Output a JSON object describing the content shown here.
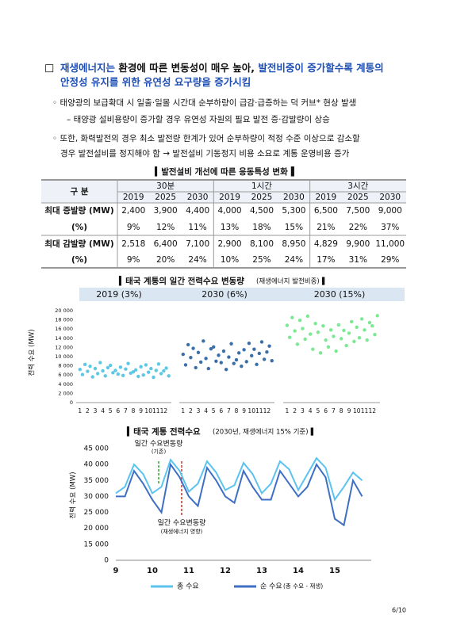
{
  "heading": {
    "line1": [
      {
        "text": "재생에너지는",
        "color": "#1f4fb4"
      },
      {
        "text": " 환경에 따른 변동성이 매우 높아, ",
        "color": "#111111"
      },
      {
        "text": "발전비중이 증가할수록 계통의",
        "color": "#1f4fb4"
      }
    ],
    "line2": [
      {
        "text": "안정성 유지를 위한 유연성 요구량을 증가시킴",
        "color": "#1f4fb4"
      }
    ]
  },
  "bullets": [
    "◦ 태양광의 보급확대 시 일출·일몰 시간대 순부하량이 급감·급증하는 덕 커브* 현상 발생",
    "– 태양광 설비용량이 증가할 경우 유연성 자원의 필요 발전 증·감발량이 상승",
    "◦ 또한, 화력발전의 경우 최소 발전량 한계가 있어 순부하량이 적정 수준 이상으로 감소할",
    "경우 발전설비를 정지해야 함 → 발전설비 기동정지 비용 소요로 계통 운영비용 증가"
  ],
  "table": {
    "title": "▍발전설비 개선에 따른 응동특성 변화▐",
    "corner": "구 분",
    "groups": [
      "30분",
      "1시간",
      "3시간"
    ],
    "years": [
      "2019",
      "2025",
      "2030",
      "2019",
      "2025",
      "2030",
      "2019",
      "2025",
      "2030"
    ],
    "rows": [
      {
        "label": "최대 증발량 (MW)",
        "values": [
          "2,400",
          "3,900",
          "4,400",
          "4,000",
          "4,500",
          "5,300",
          "6,500",
          "7,500",
          "9,000"
        ]
      },
      {
        "label": "(%)",
        "values": [
          "9%",
          "12%",
          "11%",
          "13%",
          "18%",
          "15%",
          "21%",
          "22%",
          "37%"
        ]
      },
      {
        "label": "최대 감발량 (MW)",
        "values": [
          "2,518",
          "6,400",
          "7,100",
          "2,900",
          "8,100",
          "8,950",
          "4,829",
          "9,900",
          "11,000"
        ]
      },
      {
        "label": "(%)",
        "values": [
          "9%",
          "20%",
          "24%",
          "10%",
          "25%",
          "24%",
          "17%",
          "31%",
          "29%"
        ]
      }
    ]
  },
  "charts": [
    {
      "type": "scatter",
      "title": "▍태국 계통의 일간 전력수요 변동량",
      "subtitle": "(재생에너지 발전비중)▐",
      "y_label": "전력 수요 (MW)",
      "ylim": [
        0,
        20000
      ],
      "yticks": [
        0,
        {
          "value": 2000,
          "label": "2 000"
        },
        {
          "value": 4000,
          "label": "4 000"
        },
        {
          "value": 6000,
          "label": "6 000"
        },
        {
          "value": 8000,
          "label": "8 000"
        },
        {
          "value": 10000,
          "label": "10 000"
        },
        {
          "value": 12000,
          "label": "12 000"
        },
        {
          "value": 14000,
          "label": "14 000"
        },
        {
          "value": 16000,
          "label": "16 000"
        },
        {
          "value": 18000,
          "label": "18 000"
        },
        {
          "value": 20000,
          "label": "20 000"
        }
      ],
      "xlim": [
        0.5,
        13
      ],
      "xticks": [
        1,
        2,
        3,
        4,
        5,
        6,
        7,
        8,
        9,
        10,
        11,
        12
      ],
      "x": [
        1,
        1.33,
        1.66,
        2,
        2.33,
        2.66,
        3,
        3.33,
        3.66,
        4,
        4.33,
        4.66,
        5,
        5.33,
        5.66,
        6,
        6.33,
        6.66,
        7,
        7.33,
        7.66,
        8,
        8.33,
        8.66,
        9,
        9.33,
        9.66,
        10,
        10.33,
        10.66,
        11,
        11.33,
        11.66,
        12,
        12.33,
        12.66
      ],
      "panels": [
        {
          "label": "2019 (3%)",
          "color": "#5cc8e3",
          "values": [
            7200,
            6100,
            8300,
            6800,
            7900,
            5600,
            7400,
            6300,
            8700,
            6900,
            5800,
            7600,
            8100,
            6500,
            7000,
            6200,
            7700,
            5900,
            7300,
            8500,
            6400,
            6700,
            7100,
            5700,
            7800,
            6000,
            8200,
            6600,
            7400,
            5500,
            7000,
            8400,
            6300,
            6900,
            7500,
            5800
          ]
        },
        {
          "label": "2030 (6%)",
          "color": "#3b6fa9",
          "values": [
            10500,
            8200,
            12600,
            9800,
            11800,
            7600,
            10900,
            8800,
            13400,
            9600,
            7400,
            11700,
            12100,
            9000,
            10300,
            8700,
            11200,
            7200,
            9900,
            12800,
            8500,
            9300,
            10800,
            7900,
            11500,
            8900,
            12900,
            10200,
            11600,
            8300,
            10700,
            13200,
            9400,
            11000,
            12300,
            9100
          ]
        },
        {
          "label": "2030 (15%)",
          "color": "#7be892",
          "values": [
            16800,
            14200,
            18500,
            15600,
            12700,
            17900,
            16100,
            13800,
            18800,
            14900,
            11600,
            17200,
            15300,
            10800,
            16700,
            13600,
            12100,
            15800,
            14400,
            11200,
            16900,
            13900,
            15700,
            12400,
            15100,
            17600,
            13300,
            16400,
            14100,
            18200,
            15800,
            13600,
            17400,
            16700,
            14800,
            18900
          ]
        }
      ]
    },
    {
      "type": "line",
      "title": "▍태국 계통 전력수요",
      "subtitle": "(2030년, 재생에너지 15% 기준)▐",
      "y_label": "전력 수요 (MW)",
      "yticks": [
        0,
        {
          "value": 15000,
          "label": "15 000"
        },
        {
          "value": 20000,
          "label": "20 000"
        },
        {
          "value": 25000,
          "label": "25 000"
        },
        {
          "value": 30000,
          "label": "30 000"
        },
        {
          "value": 35000,
          "label": "35 000"
        },
        {
          "value": 40000,
          "label": "40 000"
        },
        {
          "value": 45000,
          "label": "45 000"
        }
      ],
      "xlim": [
        9,
        16
      ],
      "xticks": [
        9,
        10,
        11,
        12,
        13,
        14,
        15
      ],
      "x": [
        9,
        9.25,
        9.5,
        9.75,
        10,
        10.25,
        10.5,
        10.75,
        11,
        11.25,
        11.5,
        11.75,
        12,
        12.25,
        12.5,
        12.75,
        13,
        13.25,
        13.5,
        13.75,
        14,
        14.25,
        14.5,
        14.75,
        15,
        15.25,
        15.5,
        15.75
      ],
      "series": [
        {
          "name": "총 수요",
          "color": "#5bc3ee",
          "values": [
            31000,
            33000,
            40000,
            37000,
            31000,
            33000,
            41500,
            38000,
            31500,
            34000,
            41000,
            37500,
            32000,
            33500,
            40500,
            37000,
            31000,
            34000,
            41000,
            38500,
            32000,
            37000,
            42000,
            39000,
            29000,
            33000,
            37500,
            35000
          ]
        },
        {
          "name": "순 수요",
          "note": "(총 수요 - 재생)",
          "color": "#3f6fc4",
          "values": [
            30000,
            30000,
            38000,
            34000,
            29000,
            25000,
            40000,
            36000,
            30000,
            27000,
            39000,
            35000,
            30000,
            28000,
            38000,
            33000,
            29000,
            29000,
            38000,
            34000,
            30000,
            33000,
            40000,
            36000,
            23000,
            21000,
            35000,
            30000
          ]
        }
      ],
      "annotations": [
        {
          "text": "일간 수요변동량",
          "color": "#2aa82a"
        },
        {
          "text": "(기존)",
          "color": "#2aa82a"
        },
        {
          "text": "일간 수요변동량",
          "color": "#c0392b"
        },
        {
          "text": "(재생에너지 영향)",
          "color": "#c0392b"
        }
      ]
    }
  ],
  "page_number": "6/10"
}
